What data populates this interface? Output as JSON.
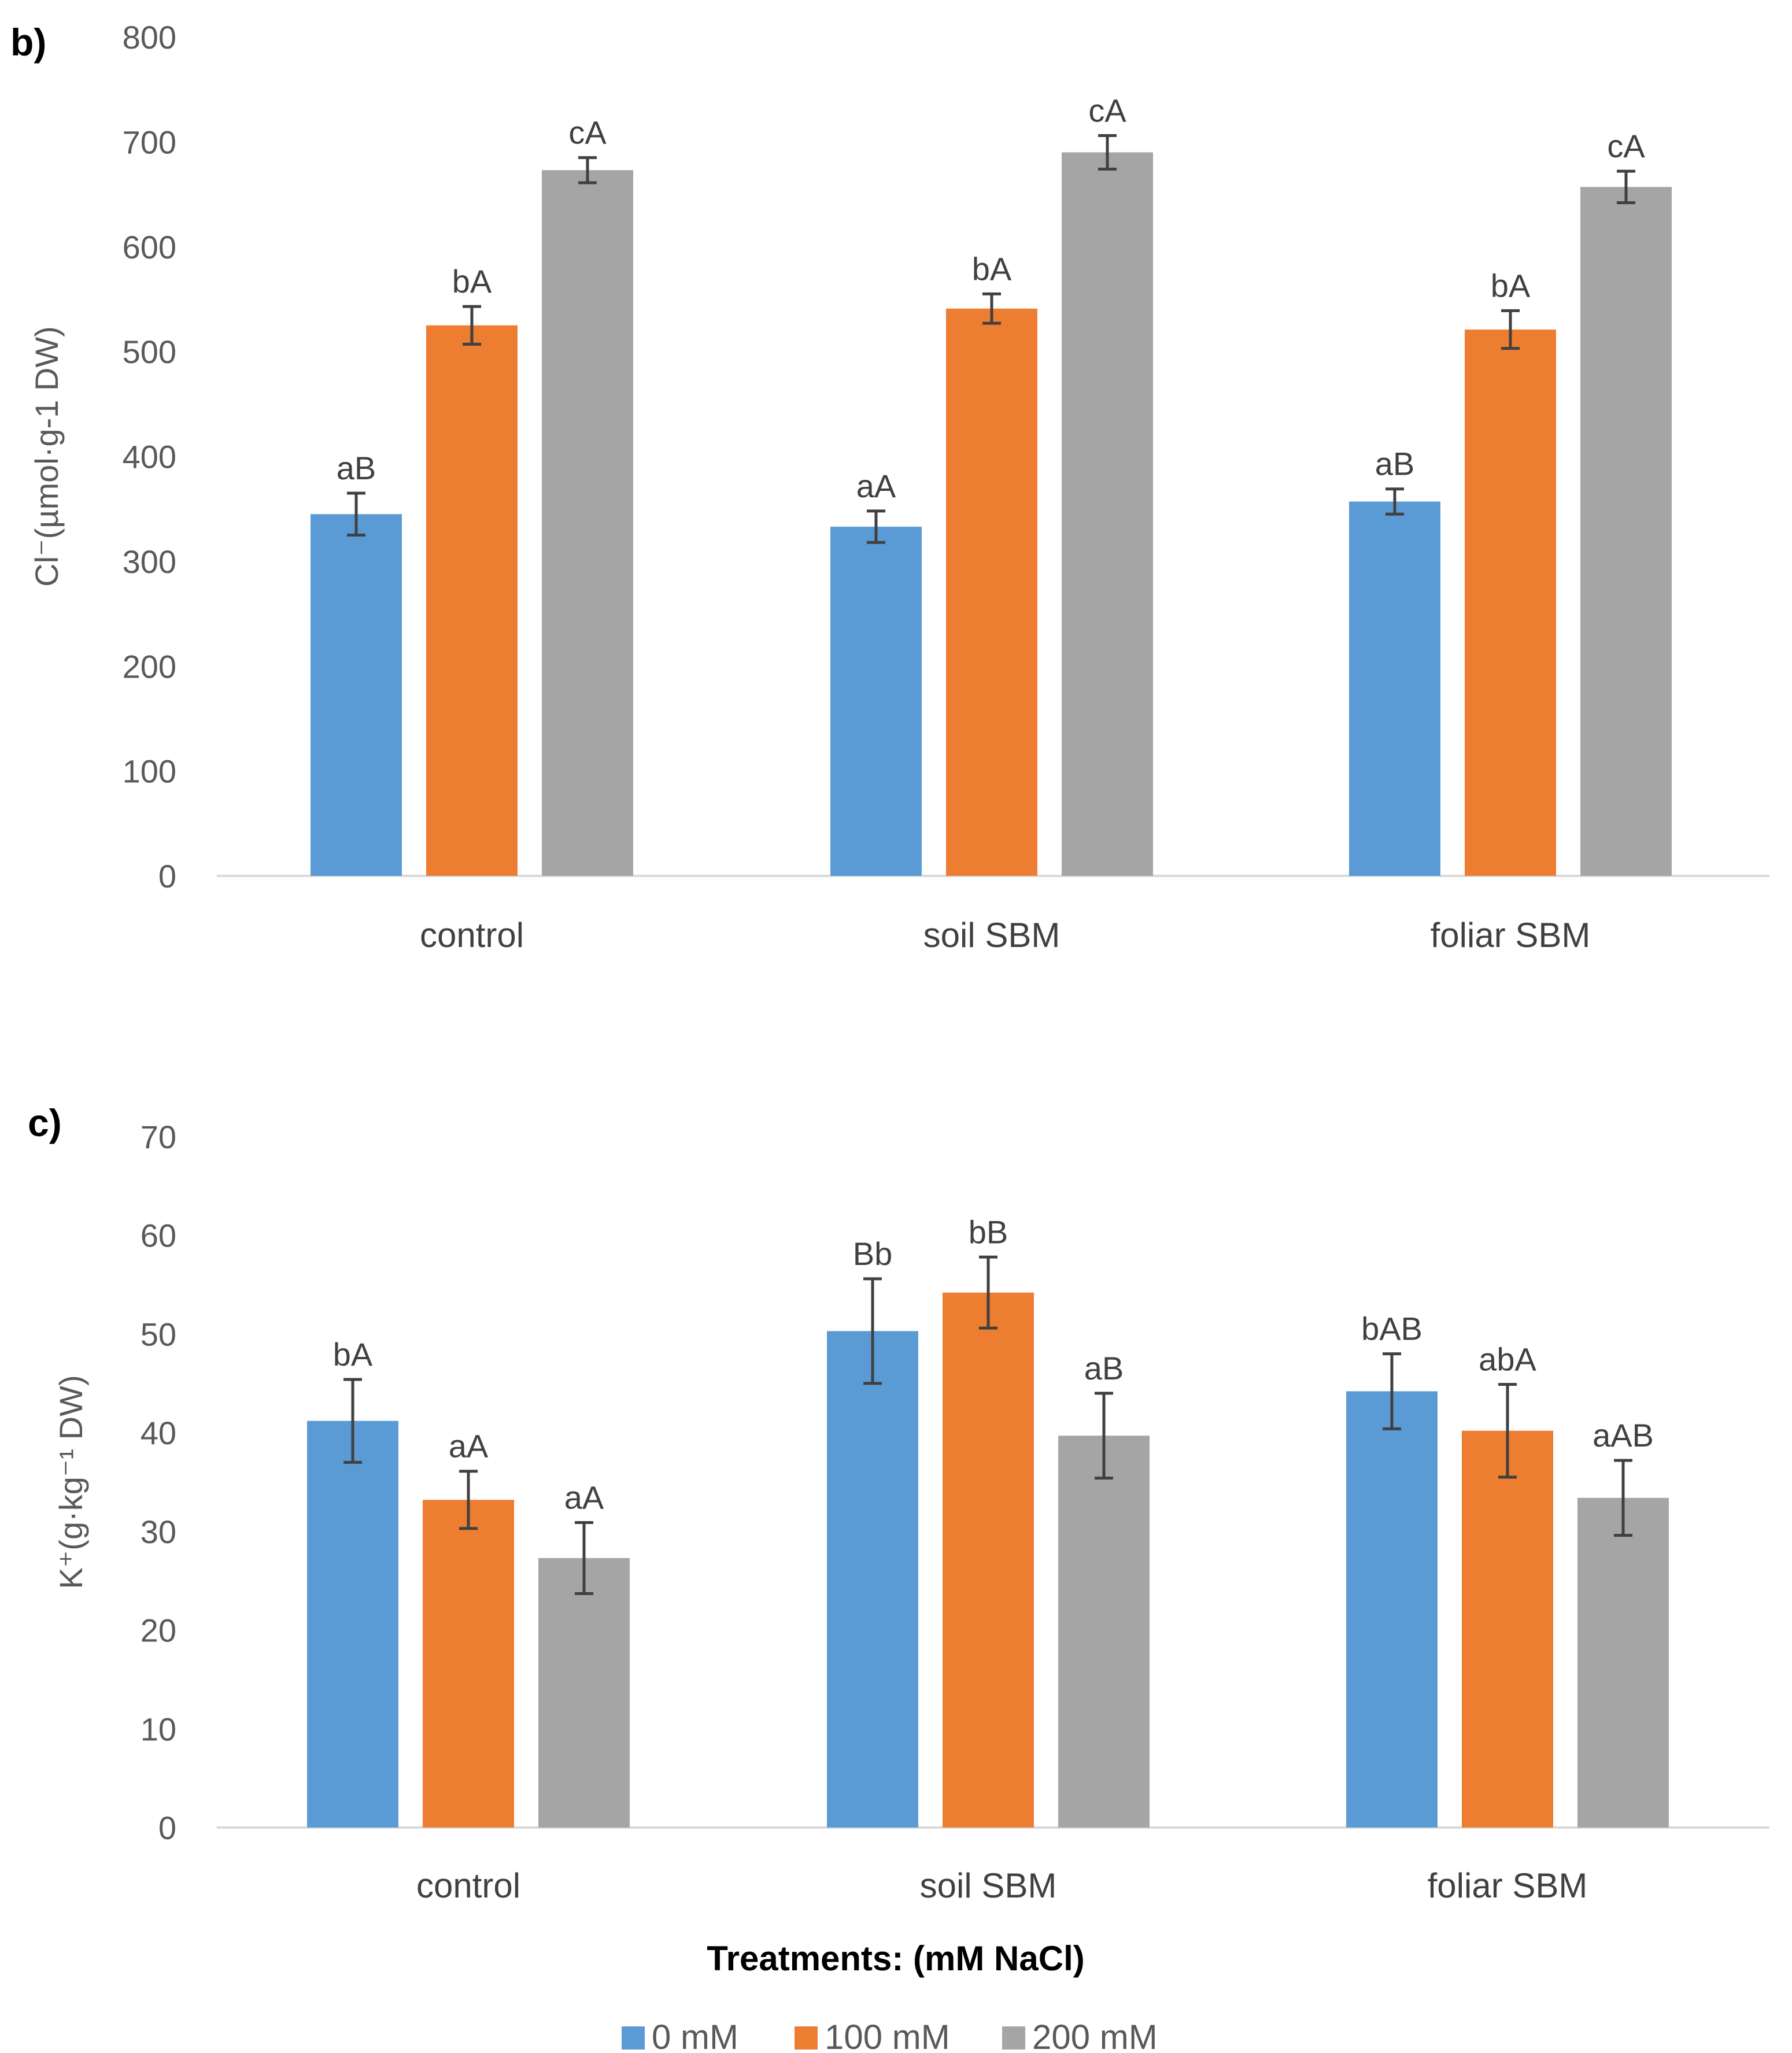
{
  "chart_data": [
    {
      "type": "bar",
      "panel_label": "b)",
      "title": "",
      "xlabel": "",
      "ylabel": "Cl⁻(µmol·g-1 DW)",
      "ylim": [
        0,
        800
      ],
      "yticks": [
        0,
        100,
        200,
        300,
        400,
        500,
        600,
        700,
        800
      ],
      "grid": false,
      "categories": [
        "control",
        "soil SBM",
        "foliar SBM"
      ],
      "series": [
        {
          "name": "0 mM",
          "color": "#5B9BD5",
          "values": [
            345,
            333,
            357
          ],
          "errors": [
            20,
            15,
            12
          ],
          "labels": [
            "aB",
            "aA",
            "aB"
          ]
        },
        {
          "name": "100 mM",
          "color": "#ED7D31",
          "values": [
            525,
            541,
            521
          ],
          "errors": [
            18,
            14,
            18
          ],
          "labels": [
            "bA",
            "bA",
            "bA"
          ]
        },
        {
          "name": "200 mM",
          "color": "#A5A5A5",
          "values": [
            673,
            690,
            657
          ],
          "errors": [
            12,
            16,
            15
          ],
          "labels": [
            "cA",
            "cA",
            "cA"
          ]
        }
      ]
    },
    {
      "type": "bar",
      "panel_label": "c)",
      "title": "",
      "xlabel": "Treatments: (mM NaCl)",
      "ylabel": "K⁺(g·kg⁻¹ DW)",
      "ylim": [
        0,
        70
      ],
      "yticks": [
        0,
        10,
        20,
        30,
        40,
        50,
        60,
        70
      ],
      "grid": false,
      "categories": [
        "control",
        "soil SBM",
        "foliar SBM"
      ],
      "series": [
        {
          "name": "0 mM",
          "color": "#5B9BD5",
          "values": [
            41.2,
            50.3,
            44.2
          ],
          "errors": [
            4.2,
            5.3,
            3.8
          ],
          "labels": [
            "bA",
            "Bb",
            "bAB"
          ]
        },
        {
          "name": "100 mM",
          "color": "#ED7D31",
          "values": [
            33.2,
            54.2,
            40.2
          ],
          "errors": [
            2.9,
            3.6,
            4.7
          ],
          "labels": [
            "aA",
            "bB",
            "abA"
          ]
        },
        {
          "name": "200 mM",
          "color": "#A5A5A5",
          "values": [
            27.3,
            39.7,
            33.4
          ],
          "errors": [
            3.6,
            4.3,
            3.8
          ],
          "labels": [
            "aA",
            "aB",
            "aAB"
          ]
        }
      ]
    }
  ],
  "legend": {
    "position": "bottom",
    "items": [
      {
        "label": "0 mM",
        "color": "#5B9BD5"
      },
      {
        "label": "100 mM",
        "color": "#ED7D31"
      },
      {
        "label": "200 mM",
        "color": "#A5A5A5"
      }
    ]
  }
}
